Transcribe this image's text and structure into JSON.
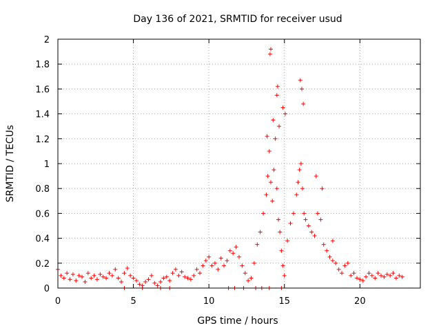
{
  "chart_data": {
    "type": "scatter",
    "title": "Day 136 of 2021, SRMTID for receiver usud",
    "xlabel": "GPS time / hours",
    "ylabel": "SRMTID / TECUs",
    "xlim": [
      0,
      24
    ],
    "ylim": [
      0,
      2
    ],
    "xticks": [
      0,
      5,
      10,
      15,
      20
    ],
    "xtick_labels": [
      "0",
      "5",
      "10",
      "15",
      "20"
    ],
    "yticks": [
      0,
      0.2,
      0.4,
      0.6,
      0.8,
      1,
      1.2,
      1.4,
      1.6,
      1.8,
      2
    ],
    "ytick_labels": [
      "0",
      "0.2",
      "0.4",
      "0.6",
      "0.8",
      "1",
      "1.2",
      "1.4",
      "1.6",
      "1.8",
      "2"
    ],
    "grid": true,
    "marker": "+",
    "color": "#ff0000",
    "series": [
      {
        "name": "SRMTID",
        "x": [
          0.0,
          0.2,
          0.4,
          0.6,
          0.8,
          1.0,
          1.2,
          1.4,
          1.6,
          1.8,
          2.0,
          2.2,
          2.4,
          2.6,
          2.8,
          3.0,
          3.2,
          3.4,
          3.6,
          3.8,
          4.0,
          4.2,
          4.4,
          4.6,
          4.8,
          5.0,
          5.2,
          5.4,
          5.6,
          5.8,
          6.0,
          6.2,
          6.4,
          6.6,
          6.8,
          7.0,
          7.2,
          7.4,
          7.6,
          7.8,
          8.0,
          8.2,
          8.4,
          8.6,
          8.8,
          9.0,
          9.2,
          9.4,
          9.6,
          9.8,
          10.0,
          10.2,
          10.4,
          10.6,
          10.8,
          11.0,
          11.2,
          11.4,
          11.6,
          11.8,
          12.0,
          12.2,
          12.4,
          12.6,
          12.8,
          13.0,
          13.2,
          13.4,
          13.6,
          13.8,
          13.9,
          14.0,
          14.1,
          14.2,
          14.3,
          14.4,
          14.5,
          14.6,
          14.7,
          14.8,
          14.9,
          15.0,
          15.2,
          15.4,
          15.6,
          15.8,
          15.9,
          16.0,
          16.1,
          16.2,
          16.3,
          16.4,
          16.6,
          16.8,
          17.0,
          17.2,
          17.4,
          17.6,
          17.8,
          18.0,
          18.2,
          18.4,
          18.6,
          18.8,
          19.0,
          19.2,
          19.4,
          19.6,
          19.8,
          20.0,
          20.2,
          20.4,
          20.6,
          20.8,
          21.0,
          21.2,
          21.4,
          21.6,
          21.8,
          22.0,
          22.2,
          22.4,
          22.6,
          22.8,
          4.4,
          5.6,
          6.8,
          7.4,
          11.3,
          11.7,
          12.3,
          13.1,
          13.5,
          14.0,
          14.8,
          14.1,
          14.5,
          14.9,
          14.05,
          14.55,
          16.05,
          16.15,
          15.05,
          13.85,
          14.25,
          14.65,
          16.25,
          17.1,
          17.5,
          18.2
        ],
        "y": [
          0.15,
          0.1,
          0.08,
          0.12,
          0.07,
          0.11,
          0.06,
          0.1,
          0.09,
          0.05,
          0.12,
          0.08,
          0.1,
          0.07,
          0.11,
          0.09,
          0.08,
          0.12,
          0.1,
          0.15,
          0.08,
          0.05,
          0.12,
          0.16,
          0.1,
          0.08,
          0.06,
          0.03,
          0.02,
          0.05,
          0.07,
          0.1,
          0.04,
          0.02,
          0.05,
          0.08,
          0.09,
          0.06,
          0.12,
          0.15,
          0.1,
          0.13,
          0.09,
          0.08,
          0.07,
          0.1,
          0.15,
          0.12,
          0.18,
          0.22,
          0.25,
          0.18,
          0.2,
          0.15,
          0.24,
          0.18,
          0.22,
          0.3,
          0.28,
          0.33,
          0.25,
          0.18,
          0.12,
          0.06,
          0.08,
          0.2,
          0.35,
          0.45,
          0.6,
          0.75,
          0.9,
          1.1,
          0.85,
          0.7,
          0.95,
          1.2,
          0.8,
          0.55,
          0.45,
          0.3,
          0.18,
          0.1,
          0.38,
          0.52,
          0.6,
          0.75,
          0.85,
          0.95,
          1.0,
          0.8,
          0.6,
          0.55,
          0.5,
          0.45,
          0.42,
          0.6,
          0.55,
          0.35,
          0.3,
          0.25,
          0.22,
          0.2,
          0.15,
          0.12,
          0.18,
          0.2,
          0.1,
          0.12,
          0.08,
          0.07,
          0.06,
          0.09,
          0.12,
          0.1,
          0.08,
          0.12,
          0.1,
          0.09,
          0.11,
          0.1,
          0.12,
          0.08,
          0.1,
          0.09,
          0.0,
          0.0,
          0.0,
          0.0,
          0.0,
          0.0,
          0.0,
          0.0,
          0.0,
          0.0,
          0.0,
          1.92,
          1.55,
          1.45,
          1.88,
          1.62,
          1.67,
          1.6,
          1.4,
          1.22,
          1.35,
          1.3,
          1.48,
          0.9,
          0.8,
          0.38
        ]
      }
    ]
  }
}
